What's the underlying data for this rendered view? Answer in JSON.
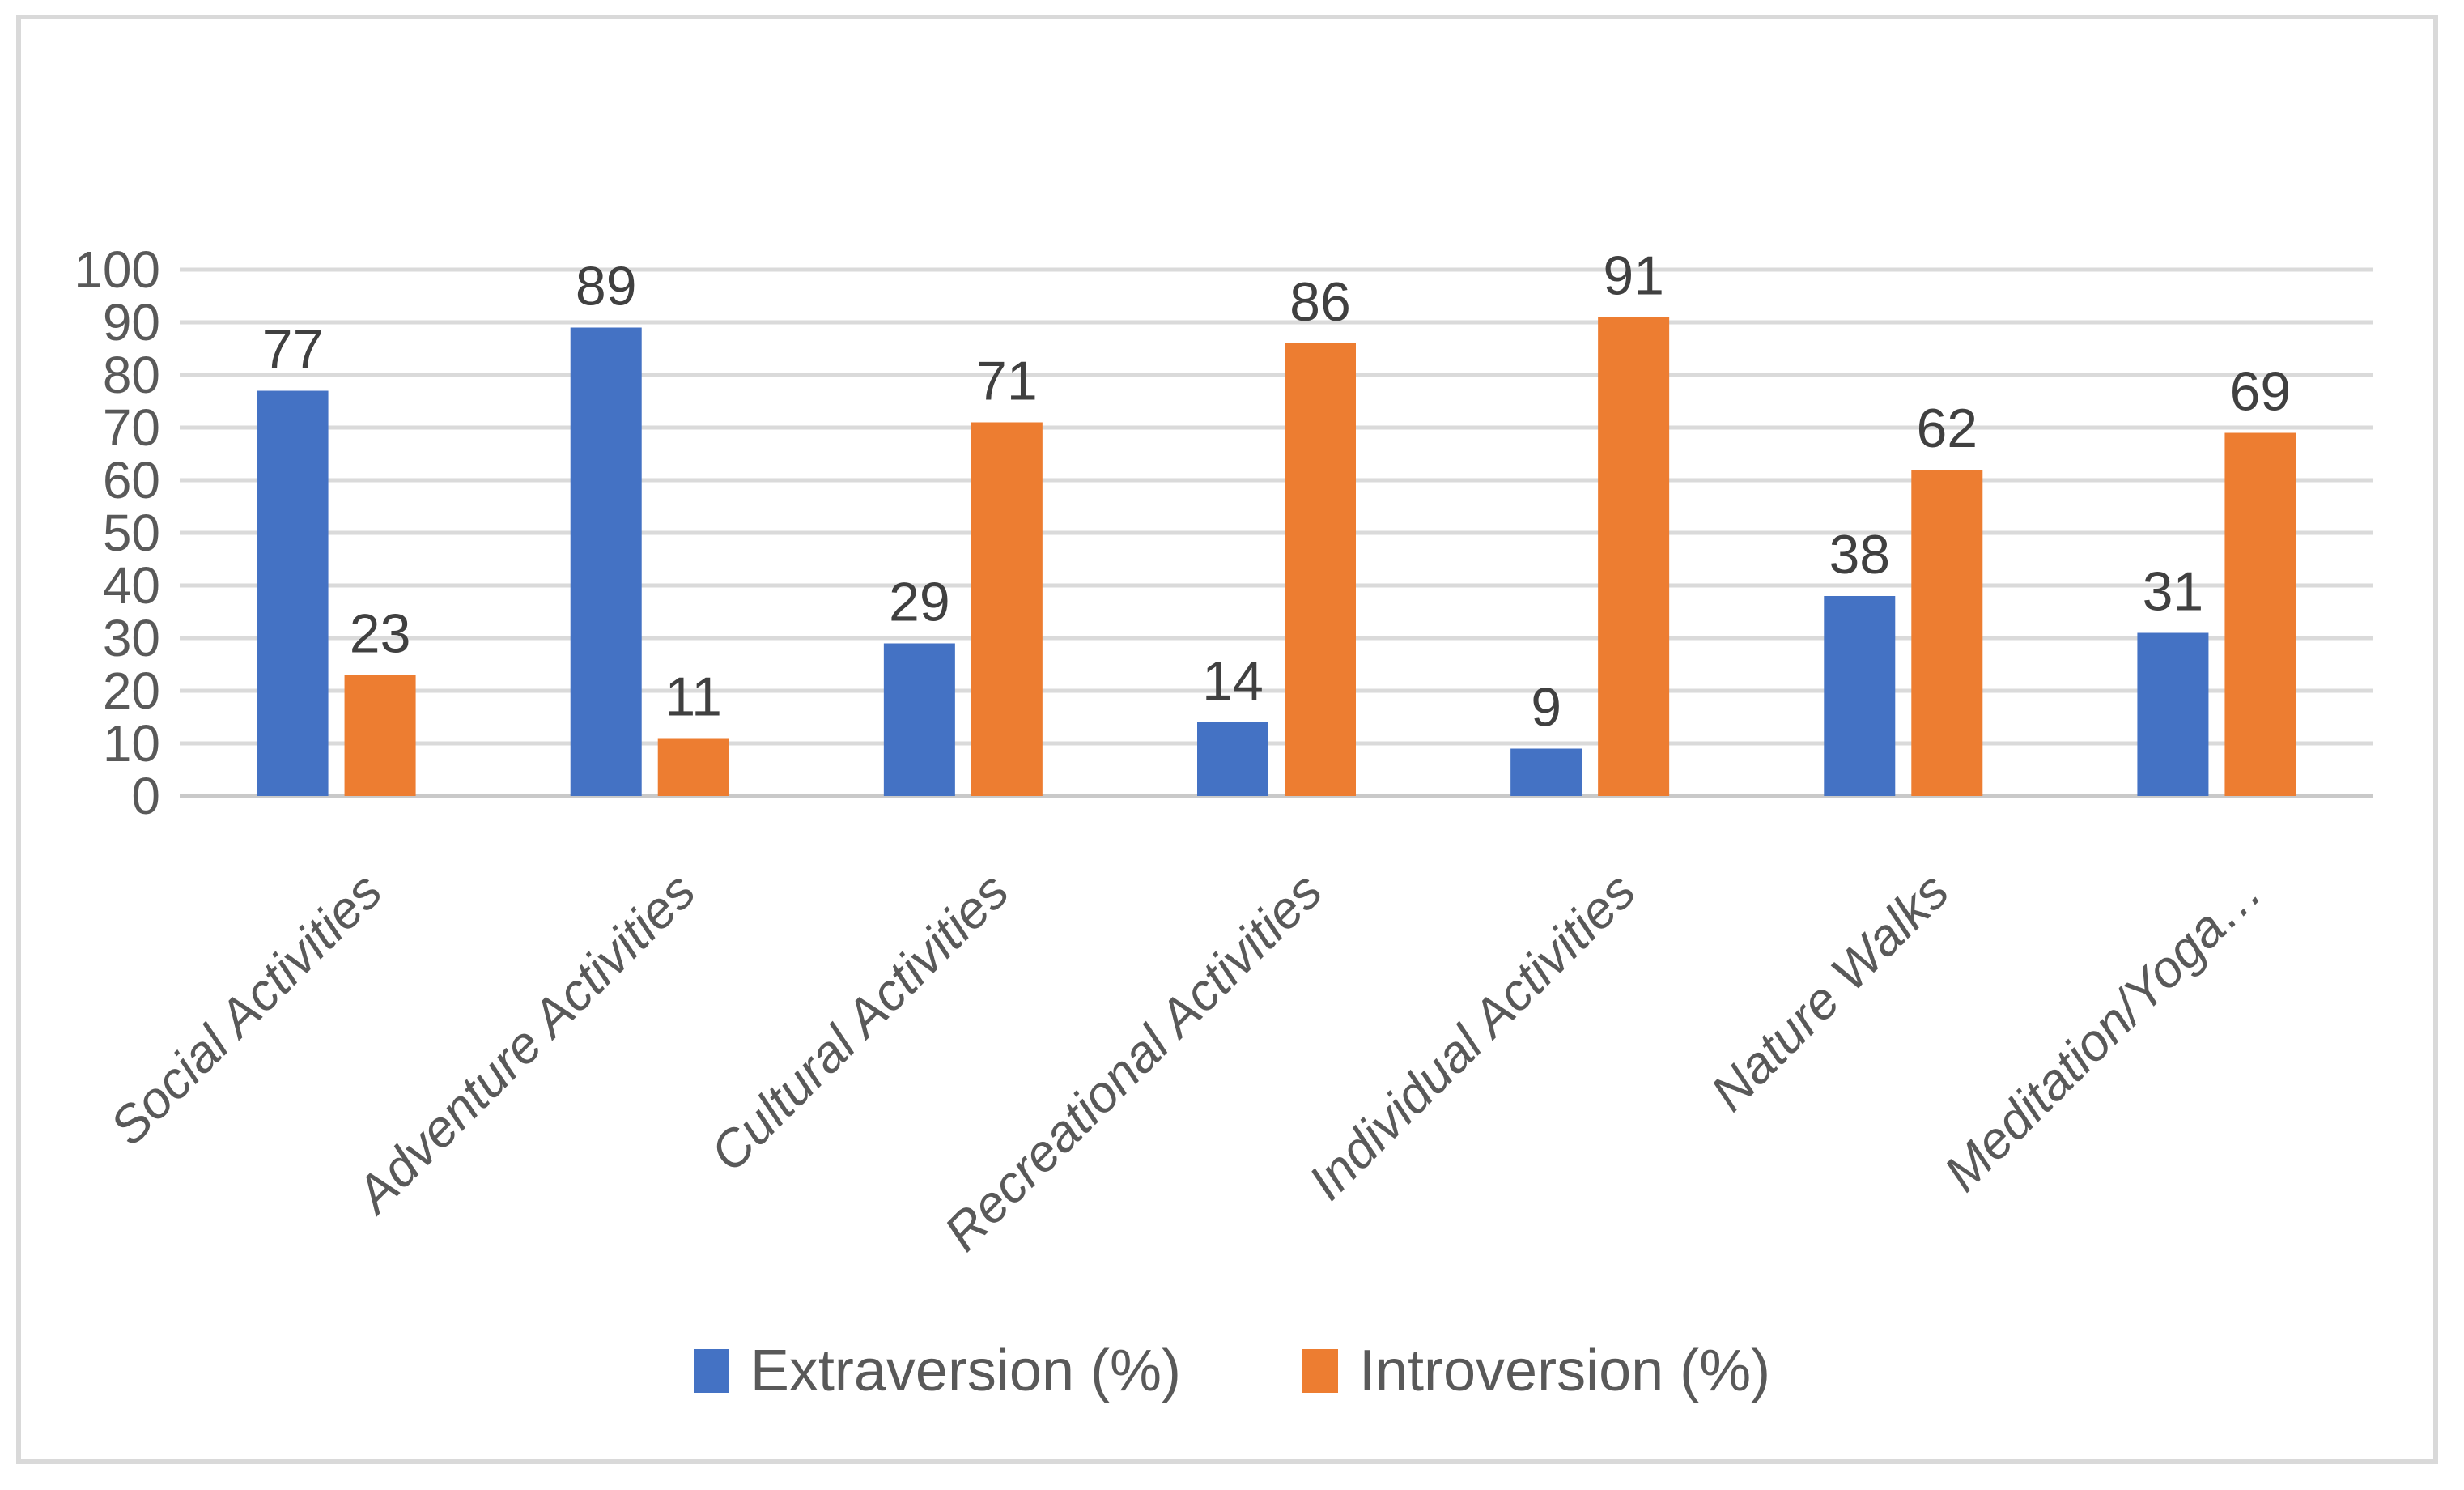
{
  "chart_data": {
    "type": "bar",
    "title": "",
    "xlabel": "",
    "ylabel": "",
    "categories": [
      "Social Activities",
      "Adventure Activities",
      "Cultural Activities",
      "Recreational Activities",
      "Individual Activities",
      "Nature Walks",
      "Meditation/Yoga…"
    ],
    "series": [
      {
        "name": "Extraversion (%)",
        "color": "#4472C4",
        "values": [
          77,
          89,
          29,
          14,
          9,
          38,
          31
        ]
      },
      {
        "name": "Introversion (%)",
        "color": "#ED7D31",
        "values": [
          23,
          11,
          71,
          86,
          91,
          62,
          69
        ]
      }
    ],
    "ylim": [
      0,
      100
    ],
    "yticks": [
      0,
      10,
      20,
      30,
      40,
      50,
      60,
      70,
      80,
      90,
      100
    ],
    "grid": true,
    "data_labels_shown": true,
    "legend_position": "bottom",
    "colors": {
      "gridline": "#DADADA",
      "baseline": "#C9C9C9",
      "axis_text": "#595959",
      "data_label_text": "#404040",
      "frame_border": "#D9D9D9",
      "background": "#FFFFFF"
    }
  }
}
